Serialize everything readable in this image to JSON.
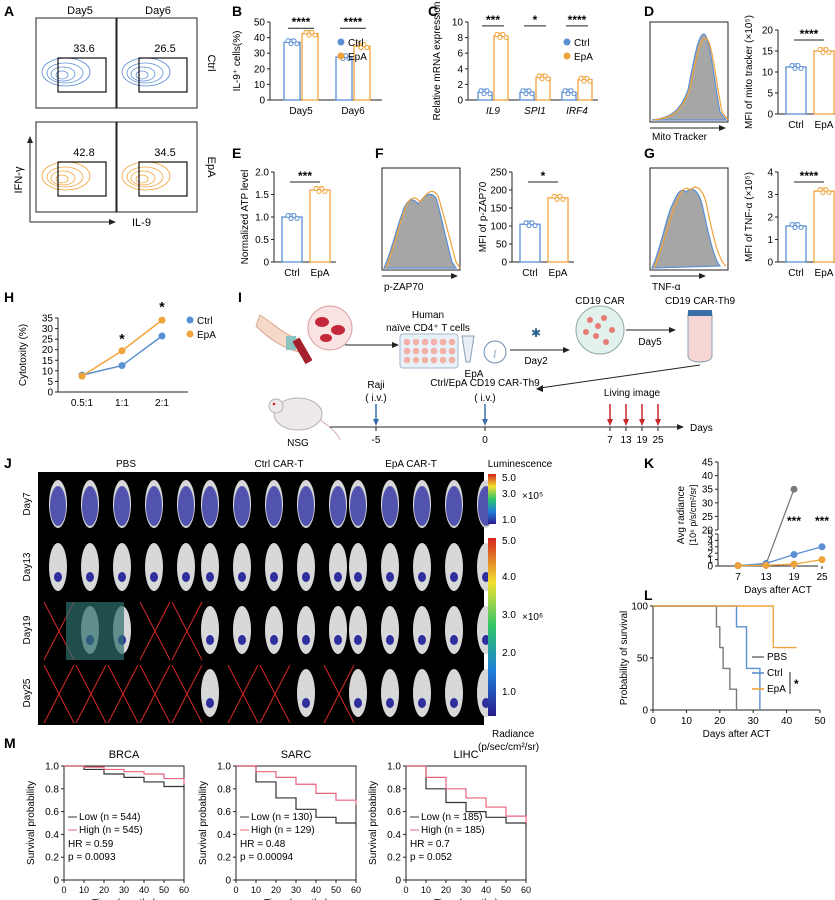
{
  "colors": {
    "ctrl": "#5b8fd3",
    "epa": "#f0a33a",
    "pbs": "#7a7a7a",
    "low": "#333333",
    "high": "#e8637e",
    "star": "#111111"
  },
  "panels": {
    "A": "A",
    "B": "B",
    "C": "C",
    "D": "D",
    "E": "E",
    "F": "F",
    "G": "G",
    "H": "H",
    "I": "I",
    "J": "J",
    "K": "K",
    "L": "L",
    "M": "M"
  },
  "panelA": {
    "day5": "Day5",
    "day6": "Day6",
    "ctrl": "Ctrl",
    "epa": "EpA",
    "ylabel": "IFN-γ",
    "xlabel": "IL-9",
    "gates": [
      "33.6",
      "26.5",
      "42.8",
      "34.5"
    ]
  },
  "legend": {
    "ctrl": "Ctrl",
    "epa": "EpA"
  },
  "sig": {
    "p4": "****",
    "p3": "***",
    "p1": "*"
  },
  "panelB": {
    "ylabel": "IL-9⁺ cells(%)",
    "ticks": [
      "0",
      "10",
      "20",
      "30",
      "40",
      "50"
    ]
  },
  "panelC": {
    "ylabel": "Relative mRNA expression",
    "ticks": [
      "0",
      "2",
      "4",
      "6",
      "8",
      "10"
    ]
  },
  "panelD": {
    "hist_xlabel": "Mito Tracker",
    "ylabel": "MFI of mito tracker (×10⁵)",
    "ticks": [
      "0",
      "5",
      "10",
      "15",
      "20"
    ]
  },
  "panelE": {
    "ylabel": "Normalized ATP level",
    "ticks": [
      "0",
      "0.5",
      "1.0",
      "1.5",
      "2.0"
    ]
  },
  "panelF": {
    "hist_xlabel": "p-ZAP70",
    "ylabel": "MFI of p-ZAP70",
    "ticks": [
      "0",
      "50",
      "100",
      "150",
      "200",
      "250"
    ]
  },
  "panelG": {
    "hist_xlabel": "TNF-α",
    "ylabel": "MFI of TNF-α (×10⁵)",
    "ticks": [
      "0",
      "1",
      "2",
      "3",
      "4"
    ]
  },
  "panelH": {
    "ylabel": "Cytotoxity (%)",
    "ticks": [
      "0",
      "5",
      "10",
      "15",
      "20",
      "25",
      "30",
      "35"
    ]
  },
  "panelI": {
    "human": "Human",
    "naive": "naïve CD4⁺ T cells",
    "epa": "EpA",
    "day2": "Day2",
    "car": "CD19 CAR",
    "carth9": "CD19 CAR-Th9",
    "day5": "Day5",
    "raji": "Raji",
    "iv": "( i.v.)",
    "iv2": "( i.v.)",
    "inject": "Ctrl/EpA CD19 CAR-Th9",
    "living": "Living image",
    "nsg": "NSG",
    "ticks": [
      "-5",
      "0",
      "7",
      "13",
      "19",
      "25"
    ],
    "days": "Days"
  },
  "panelJ": {
    "groups": [
      "PBS",
      "Ctrl CAR-T",
      "EpA CAR-T"
    ],
    "days": [
      "Day7",
      "Day13",
      "Day19",
      "Day25"
    ],
    "lum": "Luminescence",
    "lum_ticks": [
      "5.0",
      "3.0",
      "1.0"
    ],
    "lum_mult": "×10⁵",
    "rad_ticks": [
      "5.0",
      "4.0",
      "3.0",
      "2.0",
      "1.0"
    ],
    "rad_mult": "×10⁶",
    "radiance": "Radiance",
    "rad_unit": "(p/sec/cm²/sr)"
  },
  "panelK": {
    "ylabel1": "Avg radiance",
    "ylabel2": "[10⁶ p/s/cm²/sr]",
    "xlabel": "Days after ACT",
    "upper_ticks": [
      "20",
      "25",
      "30",
      "35",
      "40",
      "45"
    ],
    "lower_ticks": [
      "0",
      "1",
      "2",
      "3",
      "4",
      "5"
    ],
    "sig": "***"
  },
  "panelL": {
    "ylabel": "Probability of survival",
    "xlabel": "Days after ACT",
    "yticks": [
      "0",
      "50",
      "100"
    ],
    "xticks": [
      "0",
      "10",
      "20",
      "30",
      "40",
      "50"
    ],
    "legend": [
      "PBS",
      "Ctrl",
      "EpA"
    ],
    "sig": "*"
  },
  "panelM": {
    "ylabel": "Survival probability",
    "xlabel": "Time (months)",
    "yticks": [
      "0",
      "0.2",
      "0.4",
      "0.6",
      "0.8",
      "1.0"
    ],
    "xticks": [
      "0",
      "10",
      "20",
      "30",
      "40",
      "50",
      "60"
    ],
    "low": "Low",
    "high": "High",
    "plots": [
      {
        "title": "BRCA",
        "n_low": "(n = 544)",
        "n_high": "(n = 545)",
        "hr": "HR = 0.59",
        "p": "p = 0.0093"
      },
      {
        "title": "SARC",
        "n_low": "(n = 130)",
        "n_high": "(n = 129)",
        "hr": "HR = 0.48",
        "p": "p = 0.00094"
      },
      {
        "title": "LIHC",
        "n_low": "(n = 185)",
        "n_high": "(n = 185)",
        "hr": "HR = 0.7",
        "p": "p = 0.052"
      }
    ]
  },
  "chart_data": [
    {
      "id": "B",
      "type": "bar",
      "categories": [
        "Day5",
        "Day6"
      ],
      "ylabel": "IL-9⁺ cells(%)",
      "ylim": [
        0,
        50
      ],
      "series": [
        {
          "name": "Ctrl",
          "values": [
            37,
            27.5
          ]
        },
        {
          "name": "EpA",
          "values": [
            42.5,
            34.5
          ]
        }
      ]
    },
    {
      "id": "C",
      "type": "bar",
      "categories": [
        "IL9",
        "SPI1",
        "IRF4"
      ],
      "ylabel": "Relative mRNA expression",
      "ylim": [
        0,
        10
      ],
      "series": [
        {
          "name": "Ctrl",
          "values": [
            1,
            1,
            1
          ]
        },
        {
          "name": "EpA",
          "values": [
            8.2,
            2.9,
            2.6
          ]
        }
      ]
    },
    {
      "id": "D",
      "type": "bar",
      "categories": [
        "Ctrl",
        "EpA"
      ],
      "ylabel": "MFI of mito tracker (×10⁵)",
      "ylim": [
        0,
        20
      ],
      "values": [
        11.2,
        15
      ]
    },
    {
      "id": "E",
      "type": "bar",
      "categories": [
        "Ctrl",
        "EpA"
      ],
      "ylabel": "Normalized ATP level",
      "ylim": [
        0,
        2
      ],
      "values": [
        1.0,
        1.6
      ]
    },
    {
      "id": "F",
      "type": "bar",
      "categories": [
        "Ctrl",
        "EpA"
      ],
      "ylabel": "MFI of p-ZAP70",
      "ylim": [
        0,
        250
      ],
      "values": [
        105,
        178
      ]
    },
    {
      "id": "G",
      "type": "bar",
      "categories": [
        "Ctrl",
        "EpA"
      ],
      "ylabel": "MFI of TNF-α (×10⁵)",
      "ylim": [
        0,
        4
      ],
      "values": [
        1.6,
        3.15
      ]
    },
    {
      "id": "H",
      "type": "line",
      "categories": [
        "0.5:1",
        "1:1",
        "2:1"
      ],
      "ylabel": "Cytotoxity (%)",
      "ylim": [
        0,
        35
      ],
      "series": [
        {
          "name": "Ctrl",
          "values": [
            8,
            12.5,
            26.5
          ]
        },
        {
          "name": "EpA",
          "values": [
            7.5,
            19.5,
            34
          ]
        }
      ]
    },
    {
      "id": "K",
      "type": "line",
      "x": [
        7,
        13,
        19,
        25
      ],
      "xlabel": "Days after ACT",
      "series": [
        {
          "name": "PBS",
          "values": [
            0.05,
            0.3,
            35,
            null
          ]
        },
        {
          "name": "Ctrl",
          "values": [
            0.05,
            0.4,
            1.8,
            3.0
          ]
        },
        {
          "name": "EpA",
          "values": [
            0.05,
            0.1,
            0.3,
            1.0
          ]
        }
      ]
    },
    {
      "id": "L",
      "type": "line",
      "xlabel": "Days after ACT",
      "ylabel": "Probability of survival",
      "xlim": [
        0,
        50
      ],
      "ylim": [
        0,
        100
      ],
      "series": [
        {
          "name": "PBS",
          "steps": [
            [
              0,
              100
            ],
            [
              19,
              100
            ],
            [
              19,
              80
            ],
            [
              20,
              80
            ],
            [
              20,
              60
            ],
            [
              21,
              60
            ],
            [
              21,
              40
            ],
            [
              23,
              40
            ],
            [
              23,
              20
            ],
            [
              25,
              20
            ],
            [
              25,
              0
            ]
          ]
        },
        {
          "name": "Ctrl",
          "steps": [
            [
              0,
              100
            ],
            [
              25,
              100
            ],
            [
              25,
              80
            ],
            [
              28,
              80
            ],
            [
              28,
              40
            ],
            [
              32,
              40
            ],
            [
              32,
              0
            ]
          ]
        },
        {
          "name": "EpA",
          "steps": [
            [
              0,
              100
            ],
            [
              36,
              100
            ],
            [
              36,
              60
            ],
            [
              43,
              60
            ]
          ]
        }
      ]
    },
    {
      "id": "M-BRCA",
      "type": "line",
      "xlim": [
        0,
        60
      ],
      "ylim": [
        0,
        1
      ],
      "series": [
        {
          "name": "Low",
          "x": [
            0,
            10,
            20,
            30,
            40,
            50,
            60
          ],
          "values": [
            1,
            0.97,
            0.93,
            0.9,
            0.86,
            0.82,
            0.78
          ]
        },
        {
          "name": "High",
          "x": [
            0,
            10,
            20,
            30,
            40,
            50,
            60
          ],
          "values": [
            1,
            0.99,
            0.97,
            0.95,
            0.93,
            0.89,
            0.84
          ]
        }
      ]
    },
    {
      "id": "M-SARC",
      "type": "line",
      "xlim": [
        0,
        60
      ],
      "ylim": [
        0,
        1
      ],
      "series": [
        {
          "name": "Low",
          "x": [
            0,
            10,
            20,
            30,
            40,
            50,
            60
          ],
          "values": [
            1,
            0.86,
            0.72,
            0.62,
            0.55,
            0.5,
            0.45
          ]
        },
        {
          "name": "High",
          "x": [
            0,
            10,
            20,
            30,
            40,
            50,
            60
          ],
          "values": [
            1,
            0.95,
            0.9,
            0.84,
            0.76,
            0.7,
            0.66
          ]
        }
      ]
    },
    {
      "id": "M-LIHC",
      "type": "line",
      "xlim": [
        0,
        60
      ],
      "ylim": [
        0,
        1
      ],
      "series": [
        {
          "name": "Low",
          "x": [
            0,
            10,
            20,
            30,
            40,
            50,
            60
          ],
          "values": [
            1,
            0.8,
            0.68,
            0.6,
            0.55,
            0.5,
            0.45
          ]
        },
        {
          "name": "High",
          "x": [
            0,
            10,
            20,
            30,
            40,
            50,
            60
          ],
          "values": [
            1,
            0.9,
            0.8,
            0.72,
            0.64,
            0.56,
            0.5
          ]
        }
      ]
    }
  ]
}
